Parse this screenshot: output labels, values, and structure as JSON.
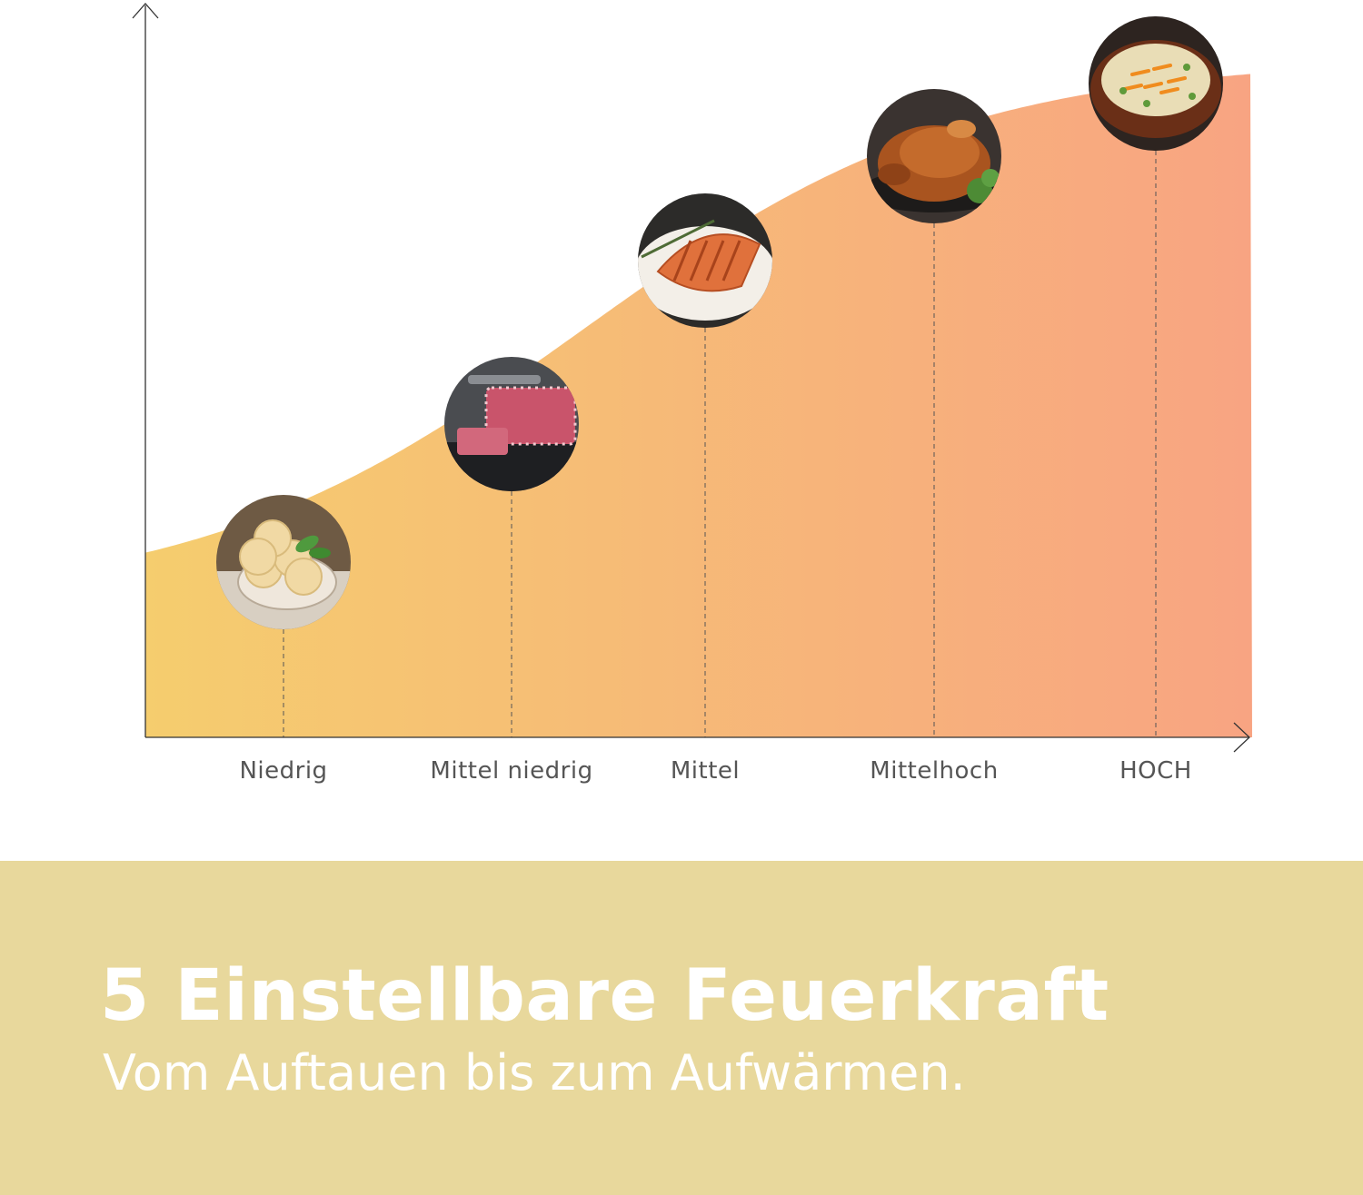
{
  "chart_data": {
    "type": "area",
    "categories": [
      "Niedrig",
      "Mittel niedrig",
      "Mittel",
      "Mittelhoch",
      "HOCH"
    ],
    "values": [
      1,
      2,
      3,
      4,
      5
    ],
    "title": "",
    "xlabel": "",
    "ylabel": "",
    "ylim": [
      0,
      5.5
    ],
    "grid": false,
    "legend": "none",
    "colors": {
      "gradient_start": "#f5cd6e",
      "gradient_end": "#f8a482",
      "axis": "#333333",
      "guide": "#555555"
    },
    "point_icons": [
      "ice-cream-icon",
      "marbled-beef-icon",
      "salmon-fillet-icon",
      "roast-chicken-icon",
      "soup-bowl-icon"
    ]
  },
  "banner": {
    "headline": "5 Einstellbare Feuerkraft",
    "subline": "Vom Auftauen bis zum Aufwärmen.",
    "background": "#e8d89c"
  }
}
